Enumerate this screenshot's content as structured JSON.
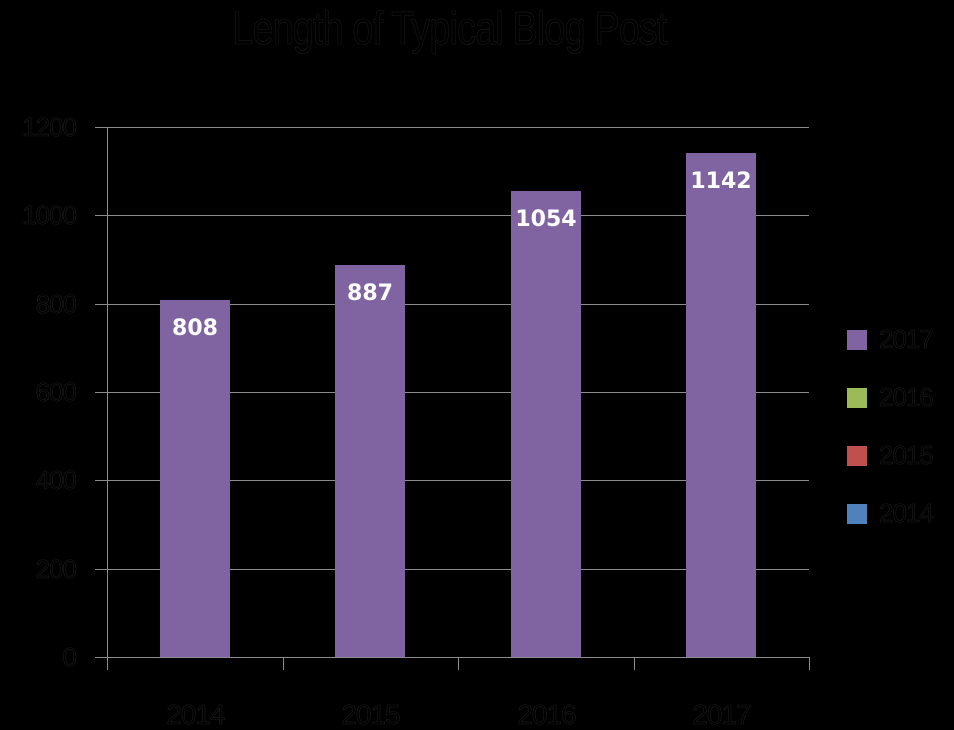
{
  "chart_data": {
    "type": "bar",
    "title": "Length of Typical Blog Post",
    "xlabel": "",
    "ylabel": "",
    "categories": [
      "2014",
      "2015",
      "2016",
      "2017"
    ],
    "values": [
      808,
      887,
      1054,
      1142
    ],
    "data_labels": [
      "808",
      "887",
      "1054",
      "1142"
    ],
    "ylim": [
      0,
      1200
    ],
    "yticks": [
      "0",
      "200",
      "400",
      "600",
      "800",
      "1000",
      "1200"
    ],
    "grid": true,
    "legend_position": "right",
    "legend": [
      {
        "label": "2017",
        "color": "#8064a2"
      },
      {
        "label": "2016",
        "color": "#9bbb59"
      },
      {
        "label": "2015",
        "color": "#c0504d"
      },
      {
        "label": "2014",
        "color": "#4f81bd"
      }
    ],
    "bar_color": "#8064a2",
    "background_color": "#000000"
  }
}
